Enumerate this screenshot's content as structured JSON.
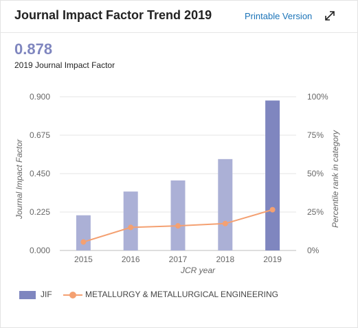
{
  "header": {
    "title": "Journal Impact Factor Trend 2019",
    "printable_label": "Printable Version",
    "expand_icon": "expand-icon"
  },
  "metric": {
    "value": "0.878",
    "label": "2019 Journal Impact Factor"
  },
  "colors": {
    "bar": "#abb0d6",
    "bar_highlight": "#7f86bf",
    "line": "#f4a071",
    "grid": "#e6e6e6"
  },
  "chart_data": {
    "type": "bar",
    "categories": [
      "2015",
      "2016",
      "2017",
      "2018",
      "2019"
    ],
    "series": [
      {
        "name": "JIF",
        "type": "bar",
        "axis": "left",
        "values": [
          0.206,
          0.345,
          0.41,
          0.535,
          0.878
        ]
      },
      {
        "name": "METALLURGY & METALLURGICAL ENGINEERING",
        "type": "line",
        "axis": "right",
        "values": [
          5.5,
          15,
          16,
          17.5,
          26.5
        ]
      }
    ],
    "xlabel": "JCR year",
    "ylabel": "Journal Impact Factor",
    "y2label": "Percentile rank in category",
    "ylim": [
      0,
      0.9
    ],
    "y2lim": [
      0,
      100
    ],
    "y_ticks": [
      "0.000",
      "0.225",
      "0.450",
      "0.675",
      "0.900"
    ],
    "y2_ticks": [
      "0%",
      "25%",
      "50%",
      "75%",
      "100%"
    ],
    "grid": true,
    "legend_position": "bottom-left"
  }
}
